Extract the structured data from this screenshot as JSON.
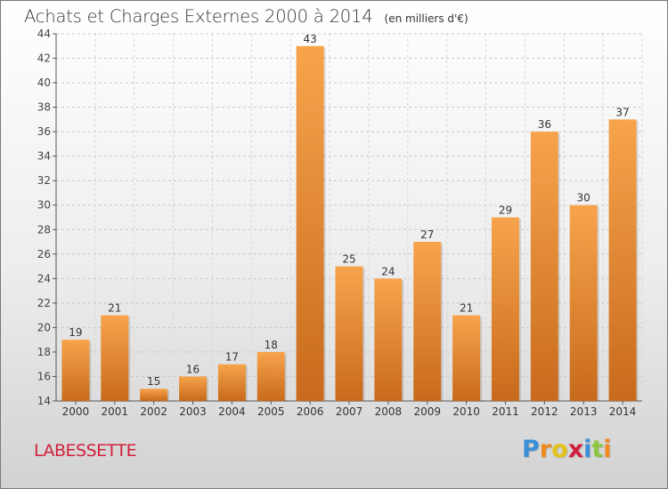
{
  "chart_data": {
    "type": "bar",
    "title": "Achats et Charges Externes 2000 à 2014",
    "subtitle": "(en milliers d'€)",
    "categories": [
      "2000",
      "2001",
      "2002",
      "2003",
      "2004",
      "2005",
      "2006",
      "2007",
      "2008",
      "2009",
      "2010",
      "2011",
      "2012",
      "2013",
      "2014"
    ],
    "values": [
      19,
      21,
      15,
      16,
      17,
      18,
      43,
      25,
      24,
      27,
      21,
      29,
      36,
      30,
      37
    ],
    "ylim": [
      14,
      44
    ],
    "yticks": [
      14,
      16,
      18,
      20,
      22,
      24,
      26,
      28,
      30,
      32,
      34,
      36,
      38,
      40,
      42,
      44
    ],
    "grid": true,
    "bar_color": "#f0922e",
    "bar_color_dark": "#c86a1c",
    "xlabel": "",
    "ylabel": ""
  },
  "commune": "LABESSETTE",
  "logo": {
    "letters": [
      "P",
      "r",
      "o",
      "x",
      "i",
      "t",
      "i"
    ],
    "colors": [
      "#3a8fd6",
      "#f08a1d",
      "#e2c21a",
      "#d11f3c",
      "#3a8fd6",
      "#8dc63f",
      "#f08a1d"
    ]
  }
}
